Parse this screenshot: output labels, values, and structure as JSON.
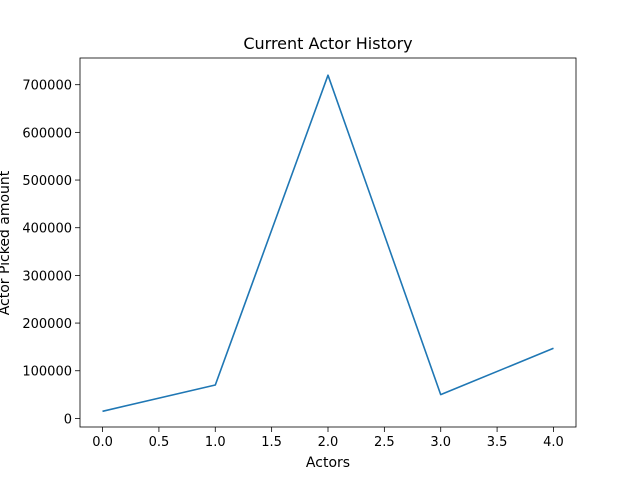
{
  "chart_data": {
    "type": "line",
    "title": "Current Actor History",
    "xlabel": "Actors",
    "ylabel": "Actor Picked amount",
    "x": [
      0,
      1,
      2,
      3,
      4
    ],
    "series": [
      {
        "values": [
          15000,
          70000,
          720000,
          50000,
          147000
        ],
        "color": "#1f77b4"
      }
    ],
    "xlim": [
      -0.2,
      4.2
    ],
    "ylim": [
      -18000,
      756000
    ],
    "xticks": [
      "0.0",
      "0.5",
      "1.0",
      "1.5",
      "2.0",
      "2.5",
      "3.0",
      "3.5",
      "4.0"
    ],
    "yticks": [
      "0",
      "100000",
      "200000",
      "300000",
      "400000",
      "500000",
      "600000",
      "700000"
    ],
    "grid": false,
    "legend": "none"
  }
}
